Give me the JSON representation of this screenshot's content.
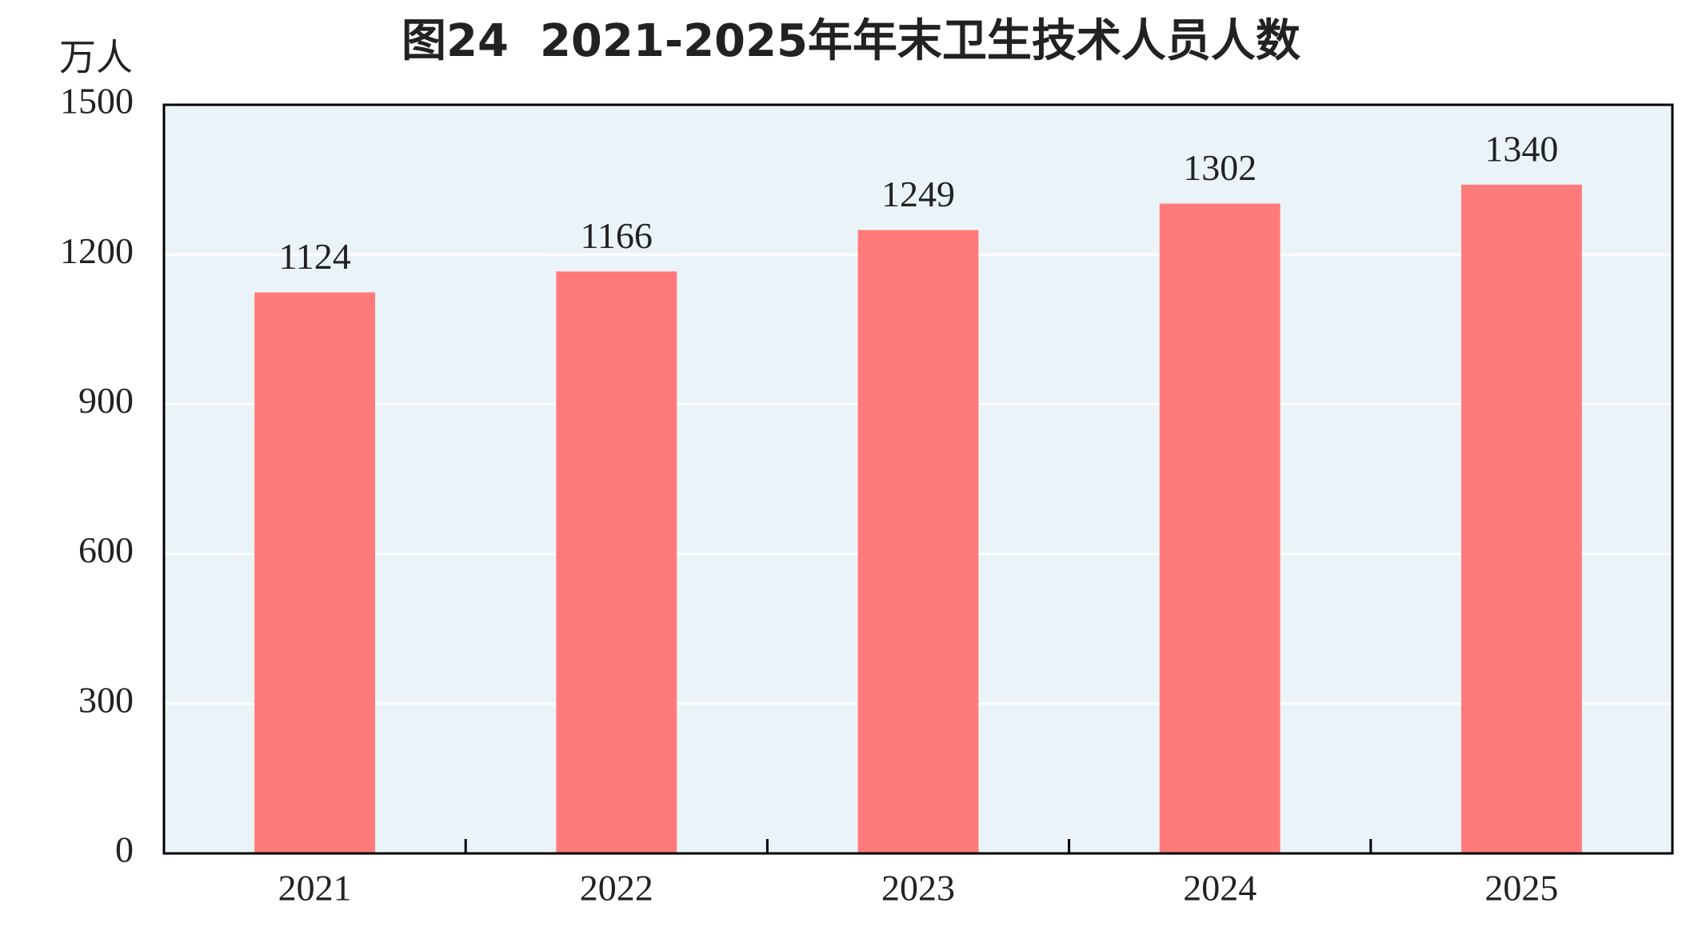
{
  "chart_data": {
    "type": "bar",
    "title": "图24  2021-2025年年末卫生技术人员人数",
    "y_label": "万人",
    "categories": [
      "2021",
      "2022",
      "2023",
      "2024",
      "2025"
    ],
    "values": [
      1124,
      1166,
      1249,
      1302,
      1340
    ],
    "color": "#ff7b7b",
    "ylim": [
      0,
      1500
    ],
    "yticks": [
      0,
      300,
      600,
      900,
      1200,
      1500
    ],
    "grid": true
  }
}
